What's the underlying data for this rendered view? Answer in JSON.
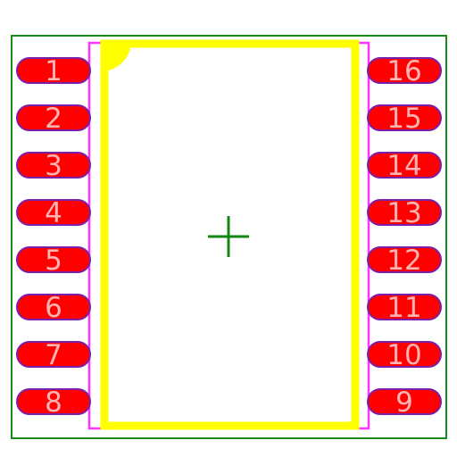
{
  "footprint": {
    "pins": [
      {
        "number": "1"
      },
      {
        "number": "2"
      },
      {
        "number": "3"
      },
      {
        "number": "4"
      },
      {
        "number": "5"
      },
      {
        "number": "6"
      },
      {
        "number": "7"
      },
      {
        "number": "8"
      },
      {
        "number": "9"
      },
      {
        "number": "10"
      },
      {
        "number": "11"
      },
      {
        "number": "12"
      },
      {
        "number": "13"
      },
      {
        "number": "14"
      },
      {
        "number": "15"
      },
      {
        "number": "16"
      }
    ],
    "colors": {
      "courtyard": "#1a8a1a",
      "assembly_outline": "#ff33ff",
      "silkscreen": "#ffff00",
      "pad_fill": "#ff0000",
      "pad_outline": "#7a1fa8",
      "pad_label": "#ffb3b3",
      "origin_marker": "#118811"
    },
    "pin1_marker": "corner-dot",
    "origin_marker": "crosshair"
  }
}
